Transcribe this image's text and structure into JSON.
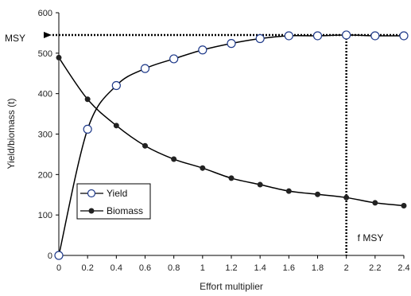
{
  "chart_data": {
    "type": "line",
    "title": "",
    "xlabel": "Effort multiplier",
    "ylabel": "Yield/biomass (t)",
    "xlim": [
      0,
      2.4
    ],
    "ylim": [
      0,
      600
    ],
    "x_ticks": [
      "0",
      "0.2",
      "0.4",
      "0.6",
      "0.8",
      "1",
      "1.2",
      "1.4",
      "1.6",
      "1.8",
      "2",
      "2.2",
      "2.4"
    ],
    "y_ticks": [
      "0",
      "100",
      "200",
      "300",
      "400",
      "500",
      "600"
    ],
    "x": [
      0,
      0.2,
      0.4,
      0.6,
      0.8,
      1.0,
      1.2,
      1.4,
      1.6,
      1.8,
      2.0,
      2.2,
      2.4
    ],
    "series": [
      {
        "name": "Yield",
        "marker": "open-circle",
        "values": [
          0,
          312,
          420,
          462,
          486,
          508,
          524,
          536,
          543,
          543,
          545,
          543,
          543
        ]
      },
      {
        "name": "Biomass",
        "marker": "filled-circle",
        "values": [
          489,
          386,
          321,
          271,
          238,
          216,
          191,
          175,
          159,
          151,
          143,
          130,
          123
        ]
      }
    ],
    "annotations": {
      "msy_label": "MSY",
      "msy_value": 545,
      "fmsy_label": "f MSY",
      "fmsy_value": 2.0
    },
    "legend_position": "lower-left",
    "grid": false
  }
}
